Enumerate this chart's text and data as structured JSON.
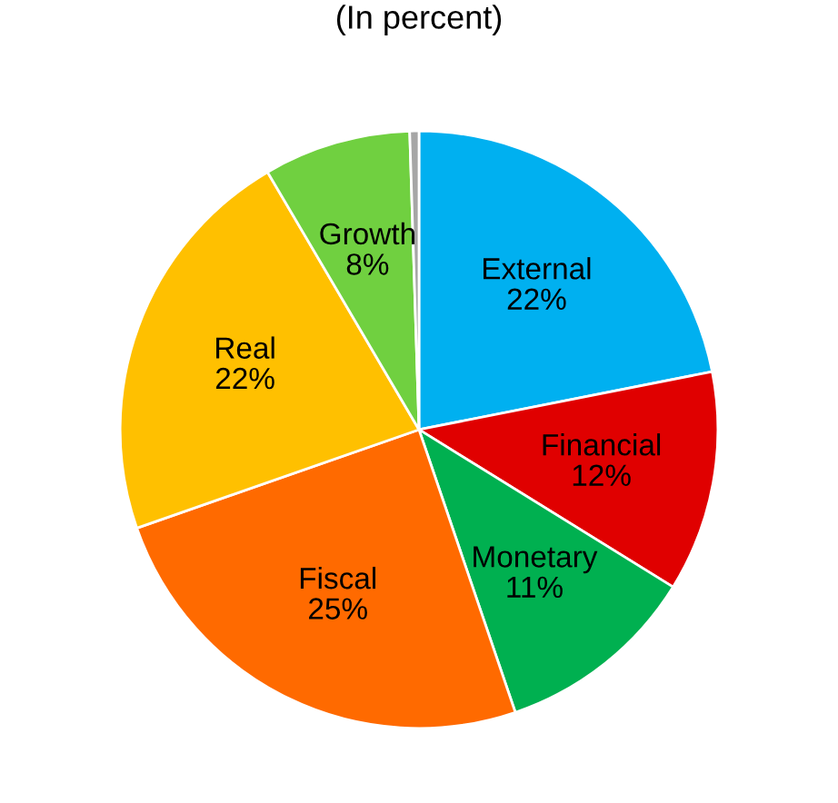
{
  "chart_data": {
    "type": "pie",
    "title": "(In percent)",
    "categories": [
      "External",
      "Financial",
      "Monetary",
      "Fiscal",
      "Real",
      "Growth",
      null
    ],
    "values": [
      22,
      12,
      11,
      25,
      22,
      8,
      0.5
    ],
    "colors": [
      "#00b0f0",
      "#e00000",
      "#00b050",
      "#ff6a00",
      "#ffc000",
      "#70d040",
      "#a6a6a6"
    ],
    "value_labels": [
      "22%",
      "12%",
      "11%",
      "25%",
      "22%",
      "8%",
      null
    ],
    "legend": false
  }
}
